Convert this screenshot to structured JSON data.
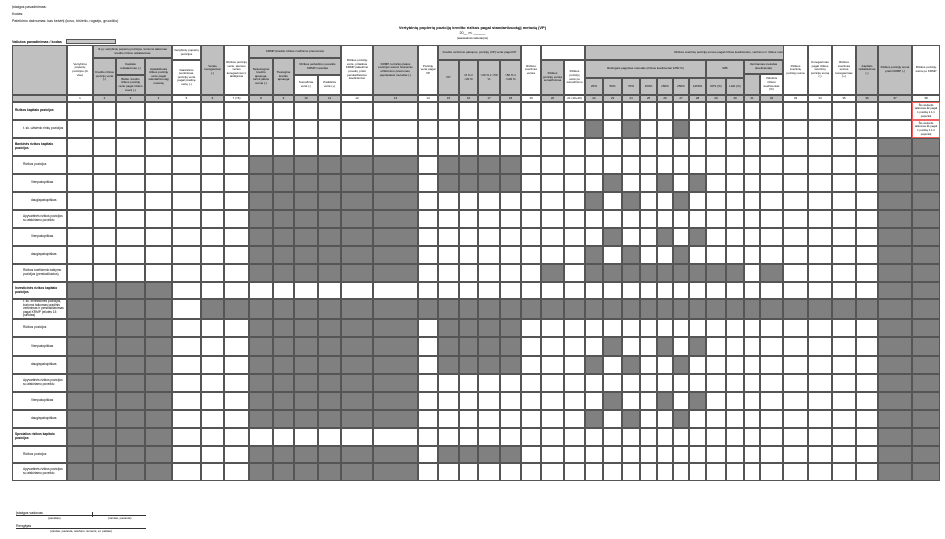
{
  "header": {
    "institution_label": "Įstaigos pavadinimas:",
    "code_label": "Kodas:",
    "submission_label": "Pateikimo dažnumas: kas ketvirtį (kovo, birželio, rugsėjo, gruodžio)",
    "currency_label": "Valiutos pavadinimas / kodas",
    "title": "Vertybinių popierių pozicijų kredito rizikos pagal standartizuotąjį metodą (VP)",
    "date_line": "20__ m. ______",
    "date_caption": "(ataskaitinis laikotarpis)"
  },
  "table": {
    "headers": {
      "h1": "Vertybinių popierių pozicijos (iš viso)",
      "g2_4": "Iš jų: vertybinių popierių pozicijos, kurioms taikomas kredito rizikos reikalavimas",
      "h2": "Kredito rizikos pozicijų vertė (-)",
      "h3a": "Kapitalo reikalavimas (-)",
      "h3b": "Būklė: kredito rizikos pozicijų vertė pagal rizikos svertį (-)",
      "h4": "Apskaičiuota rizikos pozicijų vertė pagal standartizuotąjį metodą",
      "h5top": "Vertybinių popierių pozicijos",
      "h5": "Išankstinis įvertinimas, pozicijų vertė pagal pradinę vertę (-)",
      "h6": "Vertės koregavimai (-)",
      "h7": "Rizikos pozicijų vertė, atėmus vertės koregavimus ir atidėjinius",
      "g8_11": "KRMP (kredito rizikos mažinimo priemonės)",
      "h8": "Netiesioginė kredito apsauga, turinti įtakos sumai (-)",
      "h9": "Tiesioginė kredito apsauga",
      "g10_11": "Rizikos perleidimo poveikis KRMP metodas",
      "h10": "Sumažinta vertė (-)",
      "h11": "Padidinta vertė (+)",
      "h12": "Rizikos pozicijų vertė, pritaikius KRMP pakeitimo poveikį, prieš perskaičiavimo koeficientus",
      "h13": "KRMP, turinčios įtakos pozicijos sumai: finansinio užtikrinimo priemonės, paprastasis metodas (-)",
      "h14": "Pozicijų vertė pagal VP",
      "g15_18": "Kredito vertinimo pakopos, pozicijų (VP) vertė pagal KP",
      "h15": "KP",
      "h16": ">0 % ir <20 %",
      "h17": ">20 % ir <50 %",
      "h18": ">50 % ir <100 %",
      "h19": "Rizikos svertinės vertės",
      "h20": "Rizikos pozicijų vertės sumažinimas",
      "h21": "Rizikos pozicijų vertė po sumažinimo",
      "g22_36": "Rizikos svertinių pozicijų sumos pagal rizikos koeficientus, vertinimo ir rizikos metodus",
      "g22_28": "Reitingais pagrįstas metodas (rizikos koeficientai 1250 %)",
      "p22": "20%",
      "p23": "50%",
      "p24": "70%",
      "p25": "100%",
      "p26": "150%",
      "p27": "250%",
      "p28": "1250%",
      "g29_30": "IRB",
      "h29": "KPS (%)",
      "h30": "LGD (%)",
      "g31_32": "Vertinamas metodas (koeficientai)",
      "h32": "Vidutinis rizikos koeficientas (%)",
      "h33": "Rizikos svertinių pozicijų suma",
      "h34": "Koregavimas pagal rizikos svertinių pozicijų sumą (-)",
      "h35": "Rizikos svertinės sumos koregavimas (+)",
      "h36": "Kapitalo reikalavimas (-)",
      "h37": "Rizikos pozicijų suma prieš KRMP (-)",
      "h38": "Rizikos pozicijų suma po KRMP"
    },
    "column_numbers": [
      "1",
      "2",
      "3",
      "4",
      "5",
      "6",
      "7 (=6)",
      "8",
      "9",
      "10",
      "11",
      "12",
      "13",
      "14",
      "15",
      "16",
      "17",
      "18",
      "19",
      "20",
      "21 (19+20)",
      "22",
      "23",
      "24",
      "25",
      "26",
      "27",
      "28",
      "29",
      "30",
      "31",
      "32",
      "33",
      "34",
      "35",
      "36",
      "37",
      "38"
    ],
    "rows": [
      {
        "label": "Rizikos kapitalo pozicijos"
      },
      {
        "label": "t. sk. užsienio rinkų pozicijos"
      },
      {
        "label": "Bankinės rizikos kapitalo pozicijos"
      },
      {
        "label": "Rizikos pozicijos"
      },
      {
        "label": "Vienpakopiškas"
      },
      {
        "label": "daugiapakopiškas"
      },
      {
        "label": "Apyvartinės rizikos pozicijos su atskiriamu poveikiu"
      },
      {
        "label": "Vienpakopiškas"
      },
      {
        "label": "daugiapakopiškas"
      },
      {
        "label": "Rizikos koeficiento taikymo pozicijos (perskaičiuotos)"
      },
      {
        "label": "Investicinės rizikos kapitalo pozicijos"
      },
      {
        "label": "t. sk. investicinės pozicijos, kurioms taikomas pradinis vertinimas ir perskaičiavimas pagal KRMP (eilutės 15 punktas)"
      },
      {
        "label": "Rizikos pozicijos"
      },
      {
        "label": "Vienpakopiškas"
      },
      {
        "label": "daugiapakopiškas"
      },
      {
        "label": "Apyvartinės rizikos pozicijos su atskiriamu poveikiu"
      },
      {
        "label": "Vienpakopiškas"
      },
      {
        "label": "daugiapakopiškas"
      },
      {
        "label": "Specialios rizikos kapitalo pozicijos"
      },
      {
        "label": "Rizikos pozicijos"
      },
      {
        "label": "Apyvartinės rizikos pozicijos su atskiriamu poveikiu"
      }
    ],
    "notes": {
      "r0": "Šis stulpelis taikomas tik pagal 1 punktą 1.1.1 papunktį",
      "r1": "Šis stulpelis taikomas tik pagal 1 punktą 1.1.2 papunktį"
    }
  },
  "footer": {
    "head_label": "Įstaigos vadovas",
    "signature_caption": "(parašas)",
    "name_caption": "(vardas, pavardė)",
    "preparer_label": "Rengėjas",
    "preparer_caption": "(vardas, pavardė, telefono numeris, el. paštas)"
  },
  "colors": {
    "grey_header": "#c0c0c0",
    "grey_fill": "#808080",
    "note_border": "#f06060"
  }
}
